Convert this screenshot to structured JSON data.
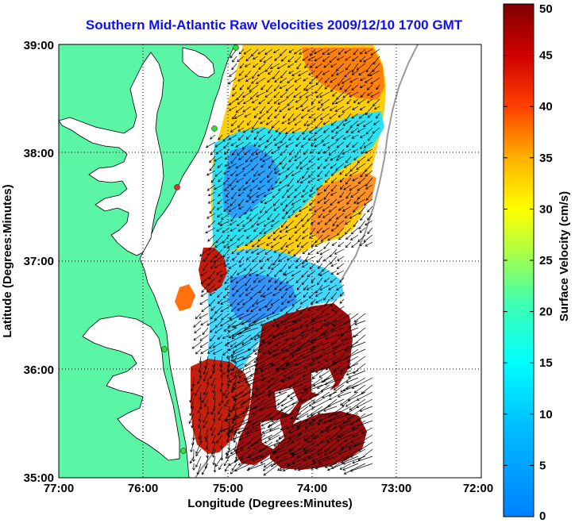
{
  "title": "Southern Mid-Atlantic Raw Velocities 2009/12/10 1700 GMT",
  "axes": {
    "xlabel": "Longitude (Degrees:Minutes)",
    "ylabel": "Latitude (Degrees:Minutes)",
    "x_ticks": [
      "77:00",
      "76:00",
      "75:00",
      "74:00",
      "73:00",
      "72:00"
    ],
    "y_ticks": [
      "39:00",
      "38:00",
      "37:00",
      "36:00",
      "35:00"
    ],
    "xlim": [
      -77,
      -72
    ],
    "ylim": [
      35,
      39
    ],
    "grid": true
  },
  "colorbar": {
    "label": "Surface Velocity (cm/s)",
    "ticks": [
      "0",
      "5",
      "10",
      "15",
      "20",
      "25",
      "30",
      "35",
      "40",
      "45",
      "50"
    ],
    "range": [
      0,
      50
    ],
    "colormap": "jet"
  },
  "colors": {
    "land": "#5af5a5",
    "title": "#1010ee",
    "coast_stations": "#33dd33"
  }
}
